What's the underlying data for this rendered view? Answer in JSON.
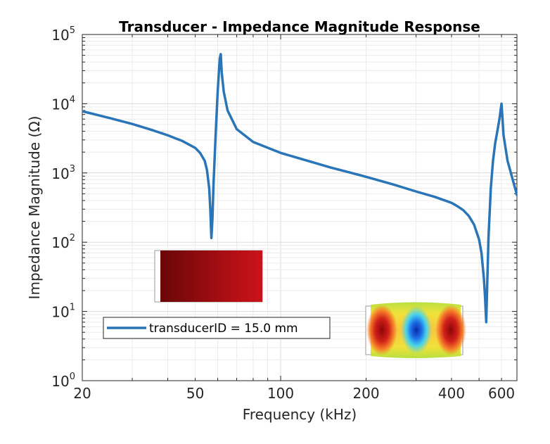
{
  "chart_data": {
    "type": "line",
    "title": "Transducer - Impedance Magnitude Response",
    "xlabel": "Frequency (kHz)",
    "ylabel": "Impedance Magnitude (Ω)",
    "xscale": "log",
    "yscale": "log",
    "xlim": [
      20,
      680
    ],
    "ylim": [
      1,
      100000
    ],
    "grid": true,
    "minor_grid": true,
    "x_tick_labels": [
      {
        "value": 20,
        "label": "20"
      },
      {
        "value": 50,
        "label": "50"
      },
      {
        "value": 100,
        "label": "100"
      },
      {
        "value": 200,
        "label": "200"
      },
      {
        "value": 400,
        "label": "400"
      },
      {
        "value": 600,
        "label": "600"
      }
    ],
    "y_tick_labels": [
      {
        "value": 1,
        "base": "10",
        "exp": "0"
      },
      {
        "value": 10,
        "base": "10",
        "exp": "1"
      },
      {
        "value": 100,
        "base": "10",
        "exp": "2"
      },
      {
        "value": 1000,
        "base": "10",
        "exp": "3"
      },
      {
        "value": 10000,
        "base": "10",
        "exp": "4"
      },
      {
        "value": 100000,
        "base": "10",
        "exp": "5"
      }
    ],
    "legend_position": "bottom-left",
    "series": [
      {
        "name": "transducerID = 15.0 mm",
        "color": "#2a74b8",
        "x": [
          20,
          25,
          30,
          35,
          40,
          45,
          50,
          52,
          54,
          55,
          56,
          56.5,
          57,
          57.5,
          58,
          59,
          60,
          61,
          61.5,
          62,
          63,
          65,
          70,
          80,
          100,
          150,
          200,
          250,
          300,
          350,
          400,
          420,
          440,
          460,
          480,
          500,
          510,
          520,
          525,
          530,
          535,
          540,
          550,
          560,
          570,
          580,
          590,
          600,
          610,
          630,
          660,
          680
        ],
        "y": [
          7800,
          6200,
          5100,
          4200,
          3500,
          2900,
          2300,
          1950,
          1500,
          1100,
          600,
          300,
          115,
          220,
          700,
          3500,
          15000,
          45000,
          52000,
          28000,
          15000,
          8000,
          4300,
          2800,
          1950,
          1200,
          880,
          680,
          540,
          450,
          370,
          330,
          290,
          240,
          180,
          110,
          70,
          30,
          16,
          7,
          30,
          120,
          600,
          1500,
          2700,
          4000,
          6000,
          10000,
          3500,
          1500,
          750,
          480
        ]
      }
    ]
  }
}
